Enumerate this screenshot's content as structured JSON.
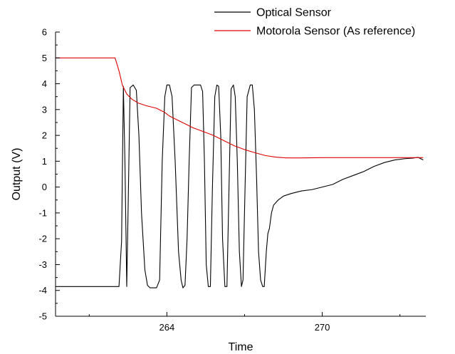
{
  "chart_data": {
    "type": "line",
    "xlabel": "Time",
    "ylabel": "Output (V)",
    "xlim": [
      259.7,
      274.0
    ],
    "ylim": [
      -5,
      6
    ],
    "x_ticks": [
      264,
      270
    ],
    "x_tick_labels": [
      "264",
      "270"
    ],
    "y_ticks": [
      6,
      5,
      4,
      3,
      2,
      1,
      0,
      -1,
      -2,
      -3,
      -4,
      -5
    ],
    "y_tick_labels": [
      "6",
      "5",
      "4",
      "3",
      "2",
      "1",
      "0",
      "-1",
      "-2",
      "-3",
      "-4",
      "-5"
    ],
    "grid": false,
    "legend_position": "top-right",
    "series": [
      {
        "name": "Optical Sensor",
        "color": "#000000",
        "points": [
          [
            259.7,
            -3.85
          ],
          [
            262.15,
            -3.85
          ],
          [
            262.25,
            -2.1
          ],
          [
            262.32,
            3.9
          ],
          [
            262.38,
            1.0
          ],
          [
            262.45,
            -3.85
          ],
          [
            262.5,
            -1.0
          ],
          [
            262.58,
            3.85
          ],
          [
            262.7,
            3.95
          ],
          [
            262.82,
            3.75
          ],
          [
            262.92,
            2.0
          ],
          [
            263.02,
            -1.0
          ],
          [
            263.15,
            -3.2
          ],
          [
            263.25,
            -3.8
          ],
          [
            263.35,
            -3.9
          ],
          [
            263.6,
            -3.9
          ],
          [
            263.72,
            -3.6
          ],
          [
            263.82,
            1.0
          ],
          [
            263.92,
            3.5
          ],
          [
            264.0,
            3.95
          ],
          [
            264.1,
            3.95
          ],
          [
            264.2,
            3.5
          ],
          [
            264.32,
            1.0
          ],
          [
            264.45,
            -2.5
          ],
          [
            264.55,
            -3.6
          ],
          [
            264.62,
            -3.9
          ],
          [
            264.7,
            -3.8
          ],
          [
            264.78,
            -2.0
          ],
          [
            264.86,
            1.0
          ],
          [
            264.95,
            3.85
          ],
          [
            265.05,
            3.95
          ],
          [
            265.3,
            3.95
          ],
          [
            265.38,
            3.7
          ],
          [
            265.45,
            1.0
          ],
          [
            265.52,
            -3.0
          ],
          [
            265.6,
            -3.85
          ],
          [
            265.68,
            -3.85
          ],
          [
            265.76,
            0.0
          ],
          [
            265.85,
            3.5
          ],
          [
            265.93,
            3.95
          ],
          [
            266.0,
            3.9
          ],
          [
            266.08,
            2.0
          ],
          [
            266.15,
            -2.0
          ],
          [
            266.24,
            -3.85
          ],
          [
            266.32,
            -3.85
          ],
          [
            266.4,
            0.0
          ],
          [
            266.48,
            3.8
          ],
          [
            266.57,
            3.95
          ],
          [
            266.64,
            3.5
          ],
          [
            266.72,
            1.0
          ],
          [
            266.8,
            -2.5
          ],
          [
            266.88,
            -3.85
          ],
          [
            266.94,
            -3.6
          ],
          [
            267.02,
            0.0
          ],
          [
            267.1,
            3.5
          ],
          [
            267.22,
            3.95
          ],
          [
            267.3,
            3.95
          ],
          [
            267.38,
            3.0
          ],
          [
            267.46,
            0.5
          ],
          [
            267.54,
            -2.5
          ],
          [
            267.62,
            -3.6
          ],
          [
            267.7,
            -3.85
          ],
          [
            267.76,
            -3.85
          ],
          [
            267.84,
            -2.5
          ],
          [
            267.9,
            -1.8
          ],
          [
            267.96,
            -1.6
          ],
          [
            268.04,
            -1.0
          ],
          [
            268.12,
            -0.7
          ],
          [
            268.3,
            -0.5
          ],
          [
            268.5,
            -0.35
          ],
          [
            268.8,
            -0.25
          ],
          [
            269.2,
            -0.15
          ],
          [
            269.6,
            -0.1
          ],
          [
            270.0,
            0.0
          ],
          [
            270.4,
            0.1
          ],
          [
            270.8,
            0.3
          ],
          [
            271.2,
            0.45
          ],
          [
            271.6,
            0.6
          ],
          [
            272.0,
            0.8
          ],
          [
            272.4,
            0.95
          ],
          [
            272.8,
            1.05
          ],
          [
            273.2,
            1.1
          ],
          [
            273.5,
            1.12
          ],
          [
            273.7,
            1.15
          ],
          [
            273.8,
            1.1
          ],
          [
            273.9,
            1.05
          ]
        ]
      },
      {
        "name": "Motorola Sensor (As reference)",
        "color": "#e00000",
        "points": [
          [
            259.7,
            5.0
          ],
          [
            262.0,
            5.0
          ],
          [
            262.15,
            4.5
          ],
          [
            262.28,
            3.95
          ],
          [
            262.45,
            3.6
          ],
          [
            262.65,
            3.4
          ],
          [
            262.9,
            3.25
          ],
          [
            263.2,
            3.15
          ],
          [
            263.6,
            3.05
          ],
          [
            263.9,
            2.9
          ],
          [
            264.1,
            2.75
          ],
          [
            264.4,
            2.6
          ],
          [
            264.7,
            2.45
          ],
          [
            265.0,
            2.3
          ],
          [
            265.4,
            2.15
          ],
          [
            265.8,
            2.0
          ],
          [
            266.2,
            1.8
          ],
          [
            266.6,
            1.6
          ],
          [
            267.0,
            1.45
          ],
          [
            267.4,
            1.33
          ],
          [
            267.8,
            1.22
          ],
          [
            268.2,
            1.16
          ],
          [
            268.6,
            1.13
          ],
          [
            269.2,
            1.13
          ],
          [
            270.0,
            1.14
          ],
          [
            271.0,
            1.14
          ],
          [
            272.0,
            1.14
          ],
          [
            273.0,
            1.14
          ],
          [
            273.9,
            1.14
          ]
        ]
      }
    ]
  }
}
